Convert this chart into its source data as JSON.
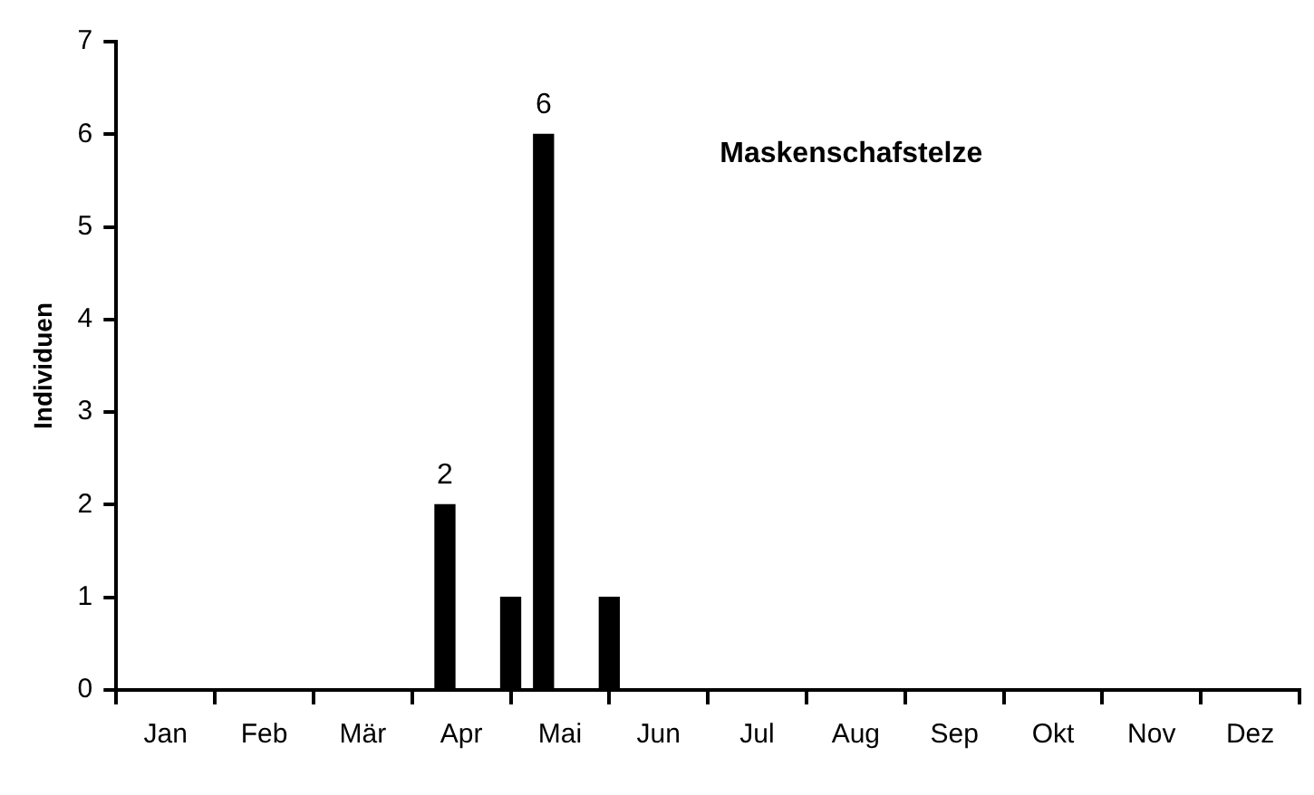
{
  "chart_data": {
    "type": "bar",
    "title": "Maskenschafstelze",
    "ylabel": "Individuen",
    "categories": [
      null,
      null,
      null,
      "Jan",
      null,
      null,
      null,
      null,
      null,
      "Feb",
      null,
      null,
      null,
      null,
      null,
      "Mär",
      null,
      null,
      null,
      null,
      null,
      "Apr",
      null,
      null,
      null,
      null,
      null,
      "Mai",
      null,
      null,
      null,
      null,
      null,
      "Jun",
      null,
      null,
      null,
      null,
      null,
      "Jul",
      null,
      null,
      null,
      null,
      null,
      "Aug",
      null,
      null,
      null,
      null,
      null,
      "Sep",
      null,
      null,
      null,
      null,
      null,
      "Okt",
      null,
      null,
      null,
      null,
      null,
      "Nov",
      null,
      null,
      null,
      null,
      null,
      "Dez",
      null,
      null,
      null
    ],
    "values": [
      null,
      null,
      null,
      null,
      null,
      null,
      null,
      null,
      null,
      null,
      null,
      null,
      null,
      null,
      null,
      null,
      null,
      null,
      null,
      null,
      2,
      null,
      null,
      null,
      1,
      null,
      6,
      null,
      null,
      null,
      1,
      null,
      null,
      null,
      null,
      null,
      null,
      null,
      null,
      null,
      null,
      null,
      null,
      null,
      null,
      null,
      null,
      null,
      null,
      null,
      null,
      null,
      null,
      null,
      null,
      null,
      null,
      null,
      null,
      null,
      null,
      null,
      null,
      null,
      null,
      null,
      null,
      null,
      null,
      null,
      null,
      null,
      null
    ],
    "value_labels": [
      null,
      null,
      null,
      null,
      null,
      null,
      null,
      null,
      null,
      null,
      null,
      null,
      null,
      null,
      null,
      null,
      null,
      null,
      null,
      null,
      "2",
      null,
      null,
      null,
      null,
      null,
      "6",
      null,
      null,
      null,
      null,
      null,
      null,
      null,
      null,
      null,
      null,
      null,
      null,
      null,
      null,
      null,
      null,
      null,
      null,
      null,
      null,
      null,
      null,
      null,
      null,
      null,
      null,
      null,
      null,
      null,
      null,
      null,
      null,
      null,
      null,
      null,
      null,
      null,
      null,
      null,
      null,
      null,
      null,
      null,
      null,
      null,
      null
    ],
    "color": "#000000",
    "ylim": [
      0,
      7
    ],
    "yticks": [
      0,
      1,
      2,
      3,
      4,
      5,
      6,
      7
    ],
    "grid": false,
    "legend": false
  }
}
